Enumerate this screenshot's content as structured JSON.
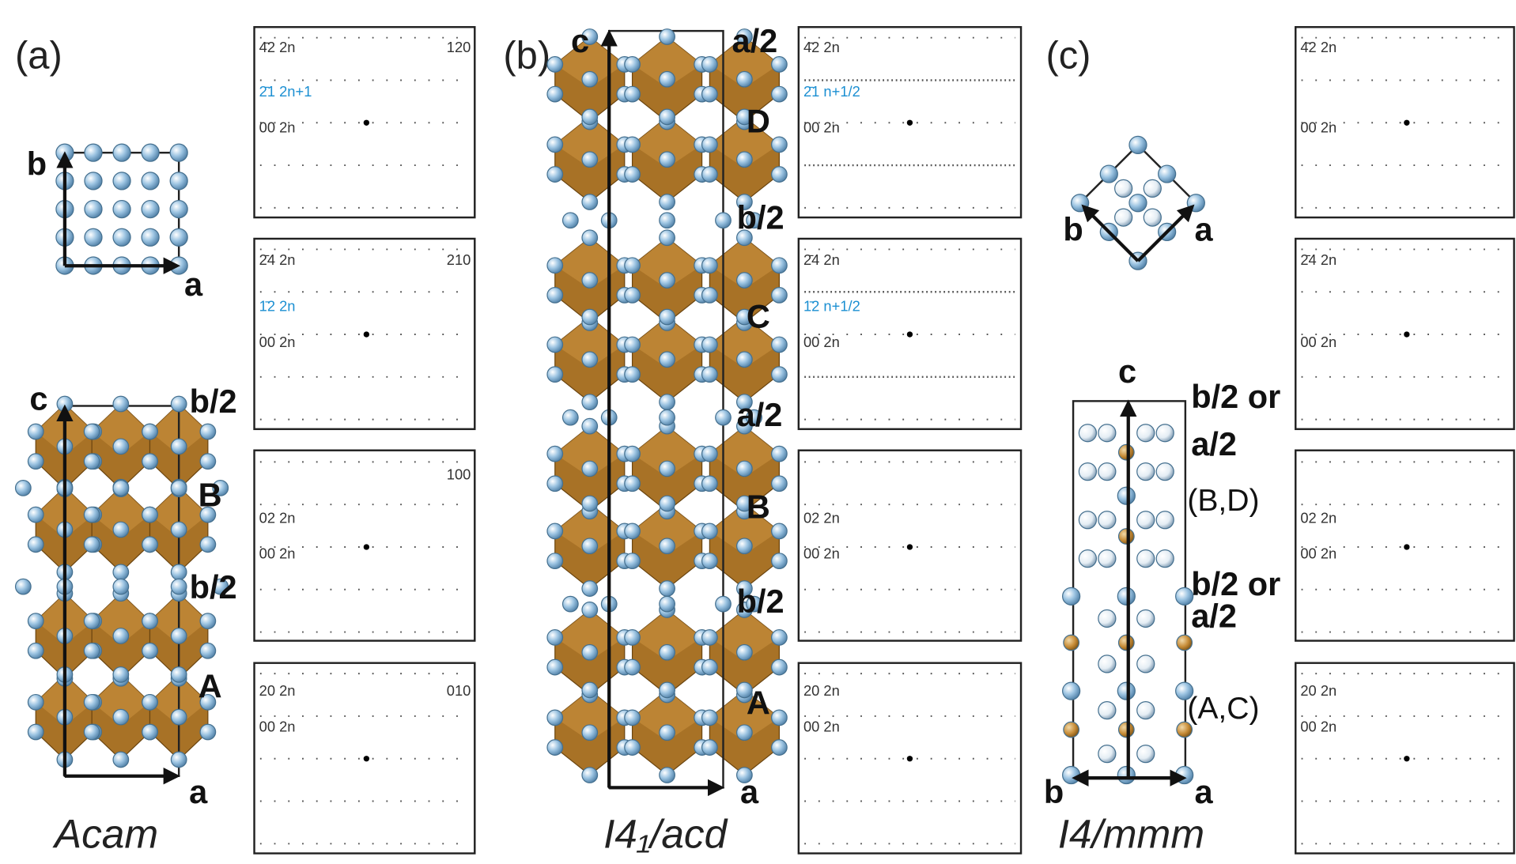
{
  "panels": [
    {
      "label": "(a)",
      "space_group": "Acam",
      "top_view": {
        "vertical_axis": "b",
        "horizontal_axis": "a"
      },
      "side_view": {
        "vertical_axis": "c",
        "horizontal_axis": "a",
        "annotations": [
          "b/2",
          "B",
          "b/2",
          "A"
        ]
      },
      "patterns": [
        {
          "top": "4̄2 2n",
          "highlighted": "2̄1 2n+1",
          "center": "00 2n",
          "zone": "120"
        },
        {
          "top": "2̄4 2n",
          "highlighted": "1̄2 2n",
          "center": "00 2n",
          "zone": "210"
        },
        {
          "top": "02 2n",
          "center": "00 2n",
          "zone": "100"
        },
        {
          "top": "20 2n",
          "center": "00 2n",
          "zone": "010"
        }
      ]
    },
    {
      "label": "(b)",
      "space_group": "I4₁/acd",
      "side_view": {
        "vertical_axis": "c",
        "horizontal_axis": "a",
        "annotations": [
          "a/2",
          "D",
          "b/2",
          "C",
          "a/2",
          "B",
          "b/2",
          "A"
        ]
      },
      "patterns": [
        {
          "top": "4̄2 2n",
          "highlighted": "2̄1 n+1/2",
          "center": "00 2n"
        },
        {
          "top": "2̄4 2n",
          "highlighted": "1̄2 n+1/2",
          "center": "00 2n"
        },
        {
          "top": "02 2n",
          "center": "00 2n"
        },
        {
          "top": "20 2n",
          "center": "00 2n"
        }
      ]
    },
    {
      "label": "(c)",
      "space_group": "I4/mmm",
      "top_view": {
        "left_axis": "b",
        "right_axis": "a"
      },
      "side_view": {
        "vertical_axis": "c",
        "left_axis": "b",
        "right_axis": "a",
        "annotations": [
          "b/2 or",
          "a/2",
          "(B,D)",
          "b/2 or",
          "a/2",
          "(A,C)"
        ]
      },
      "patterns": [
        {
          "top": "4̄2 2n",
          "center": "00 2n"
        },
        {
          "top": "2̄4 2n",
          "center": "00 2n"
        },
        {
          "top": "02 2n",
          "center": "00 2n"
        },
        {
          "top": "20 2n",
          "center": "00 2n"
        }
      ]
    }
  ]
}
